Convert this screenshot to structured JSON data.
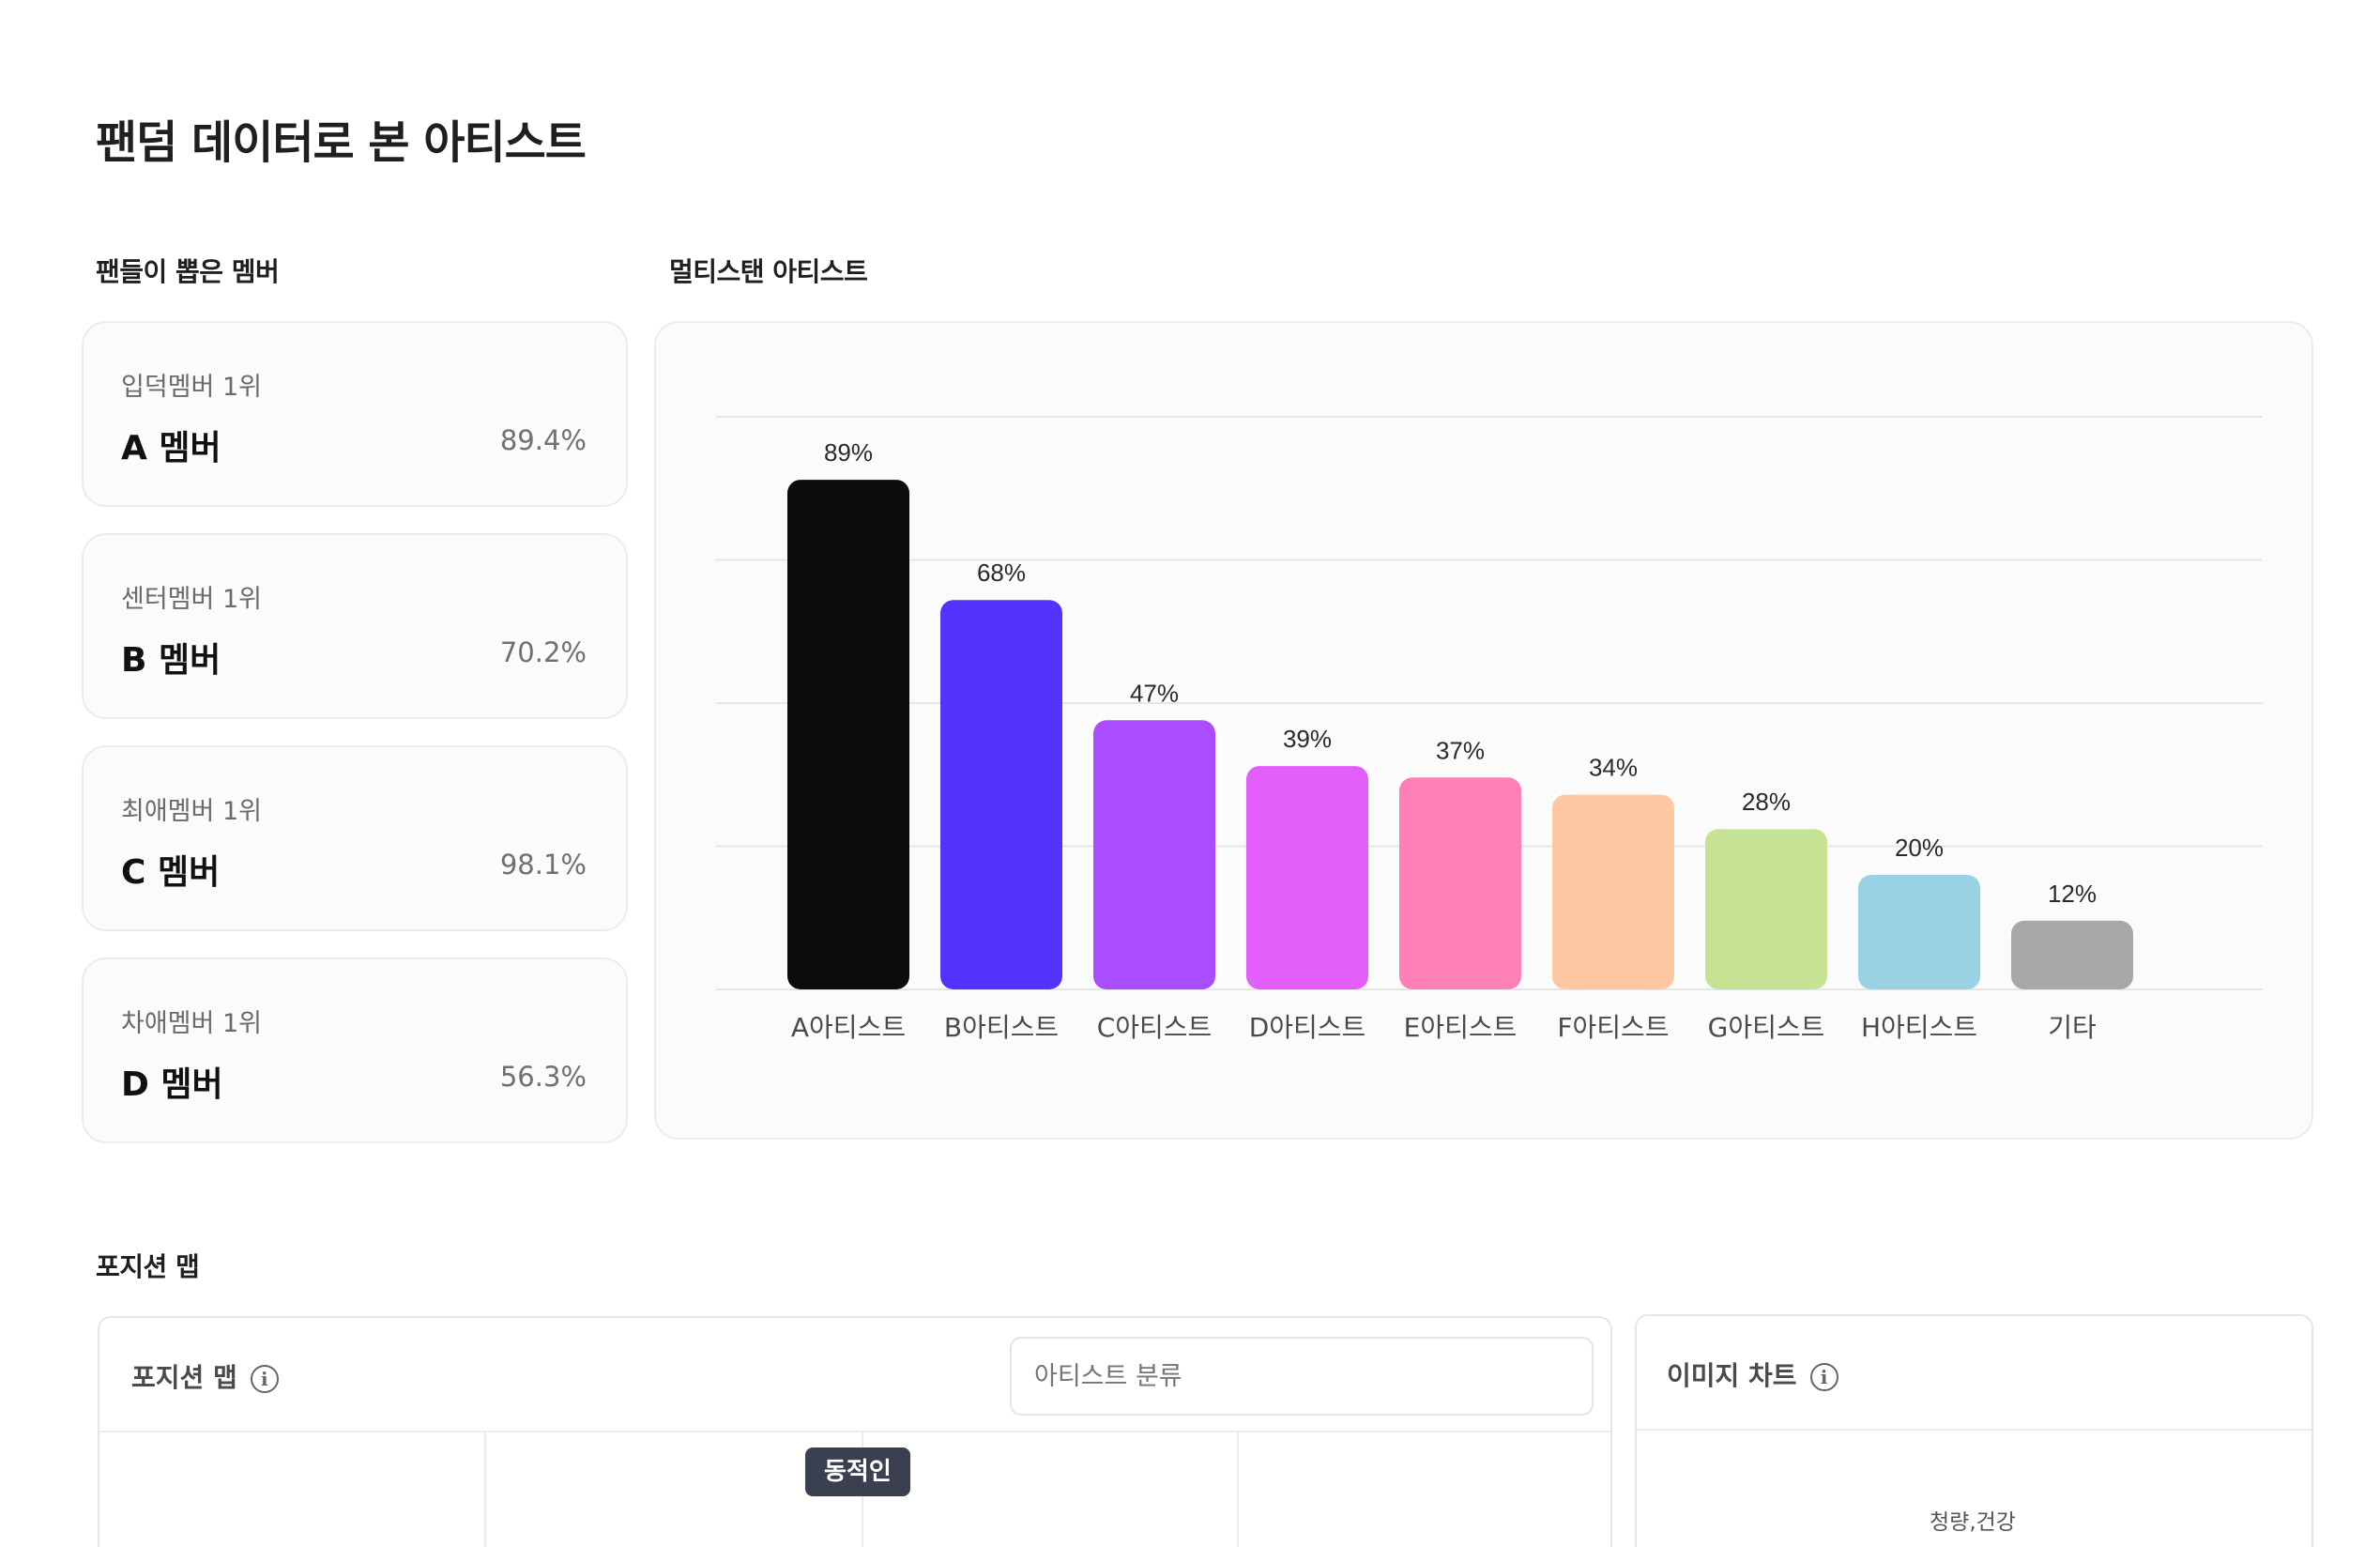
{
  "page_title": "팬덤 데이터로 본 아티스트",
  "fan_section": {
    "label": "팬들이 뽑은 멤버",
    "cards": [
      {
        "rank": "입덕멤버 1위",
        "name": "A 멤버",
        "pct": "89.4%"
      },
      {
        "rank": "센터멤버 1위",
        "name": "B 멤버",
        "pct": "70.2%"
      },
      {
        "rank": "최애멤버 1위",
        "name": "C 멤버",
        "pct": "98.1%"
      },
      {
        "rank": "차애멤버 1위",
        "name": "D 멤버",
        "pct": "56.3%"
      }
    ]
  },
  "multi_section": {
    "label": "멀티스탠 아티스트"
  },
  "chart_data": {
    "type": "bar",
    "categories": [
      "A아티스트",
      "B아티스트",
      "C아티스트",
      "D아티스트",
      "E아티스트",
      "F아티스트",
      "G아티스트",
      "H아티스트",
      "기타"
    ],
    "values": [
      89,
      68,
      47,
      39,
      37,
      34,
      28,
      20,
      12
    ],
    "value_labels": [
      "89%",
      "68%",
      "47%",
      "39%",
      "37%",
      "34%",
      "28%",
      "20%",
      "12%"
    ],
    "colors": [
      "#0c0c0e",
      "#5533fe",
      "#aa4cff",
      "#e35ffc",
      "#ff80b6",
      "#ffc8a2",
      "#c6e394",
      "#99d3e3",
      "#a8a8aa"
    ],
    "ylim": [
      0,
      100
    ],
    "grid": true
  },
  "position_section": {
    "label": "포지션 맵",
    "card_title": "포지션 맵",
    "search_placeholder": "아티스트 분류",
    "tag": "동적인"
  },
  "image_chart": {
    "title": "이미지 차트",
    "axis_label": "청량,건강"
  }
}
